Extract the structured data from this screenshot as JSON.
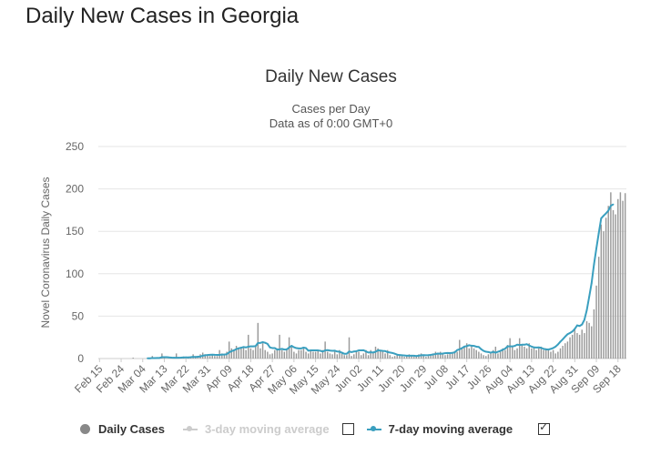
{
  "page": {
    "title": "Daily New Cases in Georgia"
  },
  "chart_data": {
    "type": "bar",
    "title": "Daily New Cases",
    "subtitle": [
      "Cases per Day",
      "Data as of 0:00 GMT+0"
    ],
    "xlabel": "",
    "ylabel": "Novel Coronavirus Daily Cases",
    "ylim": [
      0,
      250
    ],
    "yticks": [
      0,
      50,
      100,
      150,
      200,
      250
    ],
    "grid": true,
    "legend_position": "bottom",
    "start_date": "Feb 15",
    "tick_labels": [
      "Feb 15",
      "Feb 24",
      "Mar 04",
      "Mar 13",
      "Mar 22",
      "Mar 31",
      "Apr 09",
      "Apr 18",
      "Apr 27",
      "May 06",
      "May 15",
      "May 24",
      "Jun 02",
      "Jun 11",
      "Jun 20",
      "Jun 29",
      "Jul 08",
      "Jul 17",
      "Jul 26",
      "Aug 04",
      "Aug 13",
      "Aug 22",
      "Aug 31",
      "Sep 09",
      "Sep 18"
    ],
    "colors": {
      "bars": "#999999",
      "ma7": "#3a9fbf",
      "ma3": "#cccccc",
      "grid": "#e6e6e6"
    },
    "series": [
      {
        "name": "Daily Cases",
        "values": [
          0,
          0,
          0,
          0,
          0,
          0,
          0,
          0,
          0,
          0,
          0,
          0,
          0,
          0,
          1,
          0,
          0,
          0,
          0,
          0,
          1,
          0,
          3,
          0,
          1,
          0,
          6,
          1,
          0,
          0,
          0,
          0,
          6,
          0,
          2,
          2,
          0,
          1,
          2,
          5,
          3,
          1,
          5,
          7,
          5,
          4,
          3,
          5,
          3,
          3,
          10,
          6,
          5,
          8,
          20,
          12,
          10,
          15,
          12,
          12,
          14,
          10,
          28,
          12,
          10,
          15,
          42,
          12,
          18,
          10,
          8,
          5,
          6,
          10,
          12,
          28,
          10,
          8,
          12,
          25,
          15,
          8,
          6,
          10,
          10,
          12,
          8,
          6,
          10,
          8,
          8,
          10,
          6,
          10,
          20,
          8,
          6,
          5,
          8,
          5,
          10,
          6,
          4,
          4,
          25,
          3,
          5,
          8,
          8,
          4,
          6,
          10,
          4,
          10,
          8,
          14,
          12,
          10,
          8,
          6,
          10,
          4,
          2,
          3,
          5,
          4,
          3,
          2,
          4,
          5,
          3,
          2,
          3,
          5,
          6,
          4,
          2,
          3,
          5,
          6,
          8,
          5,
          8,
          6,
          4,
          5,
          7,
          6,
          9,
          8,
          22,
          12,
          14,
          18,
          12,
          16,
          12,
          10,
          8,
          6,
          4,
          3,
          5,
          8,
          10,
          14,
          6,
          8,
          12,
          10,
          16,
          24,
          14,
          10,
          12,
          24,
          16,
          14,
          12,
          18,
          12,
          14,
          10,
          12,
          14,
          10,
          12,
          10,
          8,
          10,
          6,
          8,
          12,
          15,
          18,
          20,
          25,
          28,
          36,
          30,
          28,
          34,
          30,
          44,
          42,
          38,
          58,
          86,
          120,
          158,
          150,
          166,
          180,
          196,
          175,
          170,
          188,
          196,
          186,
          195
        ],
        "visible": true
      },
      {
        "name": "3-day moving average",
        "visible": false
      },
      {
        "name": "7-day moving average",
        "values": [
          0,
          0,
          0,
          0,
          0,
          0,
          0,
          0,
          0,
          0,
          0,
          0,
          0,
          0,
          0,
          0,
          0,
          0,
          0,
          0,
          0.3,
          0.3,
          0.6,
          0.6,
          0.7,
          0.7,
          1.6,
          1.6,
          1.6,
          1.3,
          1.1,
          1,
          1,
          1,
          1.1,
          1.4,
          1.4,
          1.3,
          1.6,
          2,
          1.7,
          2.1,
          2.4,
          3.4,
          3.9,
          4.1,
          4.4,
          4.6,
          4.4,
          4.3,
          4.3,
          4.7,
          4.7,
          5.1,
          7.3,
          8.7,
          9.7,
          11.1,
          12.1,
          12.7,
          13.6,
          13.1,
          14,
          14.4,
          14.3,
          14.6,
          18.4,
          18.4,
          19.3,
          18.6,
          17.3,
          13.1,
          12.4,
          12.4,
          10.6,
          10.9,
          11.4,
          10.6,
          10.7,
          13,
          15,
          13.3,
          12.3,
          11.9,
          11.9,
          12.9,
          12.3,
          9.3,
          9.6,
          9.7,
          9.7,
          9.6,
          9.1,
          8.3,
          9.6,
          9.9,
          9.4,
          9.1,
          9.3,
          8.3,
          8,
          6.9,
          5.6,
          5.6,
          8.3,
          7.6,
          8.3,
          8.6,
          9.6,
          9.6,
          9.8,
          8.4,
          7.1,
          7.4,
          7.1,
          8,
          9.7,
          9.4,
          9,
          8.8,
          7.6,
          7.1,
          6.6,
          5.7,
          4.6,
          4.1,
          3.9,
          3.6,
          3.3,
          3.3,
          3.4,
          3.3,
          3,
          3.4,
          3.9,
          4,
          3.9,
          4,
          4.3,
          4.9,
          5.3,
          5.9,
          5.6,
          5.9,
          6.3,
          6.6,
          6.4,
          6.7,
          7.3,
          10,
          10.9,
          12.3,
          14.1,
          14.7,
          15.7,
          15.1,
          14.9,
          14,
          13.7,
          11,
          9.1,
          8,
          7.7,
          6.9,
          7.9,
          6.9,
          8,
          9,
          10.4,
          11.7,
          14.3,
          14.4,
          14.3,
          14.9,
          16.4,
          16,
          16.3,
          16.3,
          16.9,
          15.4,
          14.1,
          13.1,
          13,
          13.1,
          12.6,
          11.4,
          10.9,
          10.6,
          11.4,
          12.4,
          14.1,
          16.6,
          19.9,
          22.7,
          25.9,
          28.7,
          30.1,
          31.9,
          35,
          39.1,
          38.4,
          40.1,
          45.6,
          57,
          72.7,
          88.9,
          110.9,
          130,
          148,
          165.3,
          168.4,
          171.1,
          174.5,
          180.1,
          181.7
        ]
      }
    ]
  },
  "legend": {
    "items": [
      {
        "label": "Daily Cases"
      },
      {
        "label": "3-day moving average"
      },
      {
        "label": "7-day moving average"
      }
    ]
  }
}
